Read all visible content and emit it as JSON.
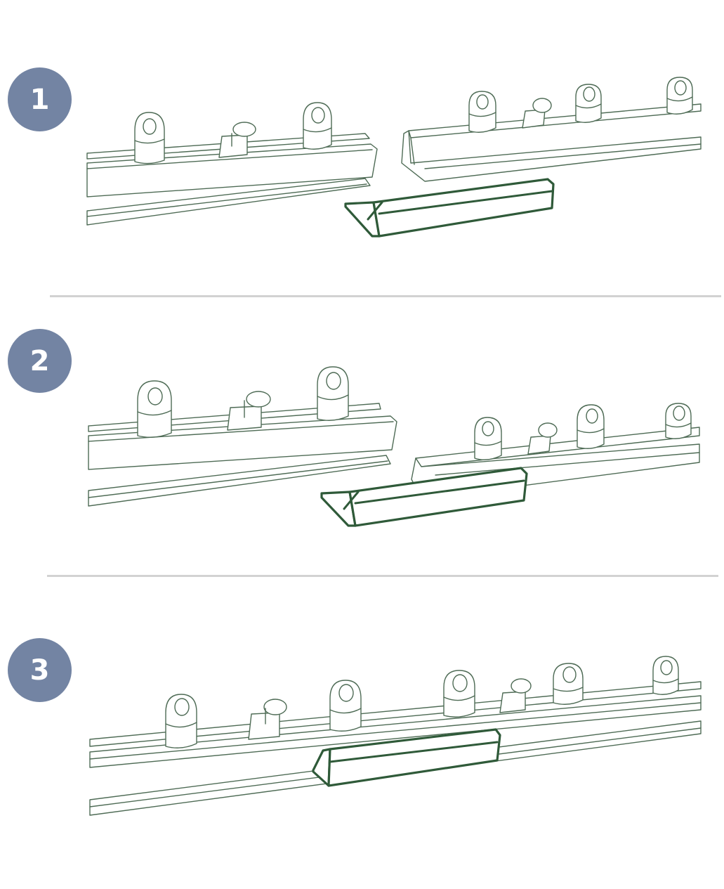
{
  "colors": {
    "badge": "#7384a3",
    "badge_text": "#ffffff",
    "divider": "#d2d2d2",
    "line_art": "#4e6b55",
    "connector": "#2f5a39"
  },
  "steps": [
    {
      "number": "1"
    },
    {
      "number": "2"
    },
    {
      "number": "3"
    }
  ]
}
